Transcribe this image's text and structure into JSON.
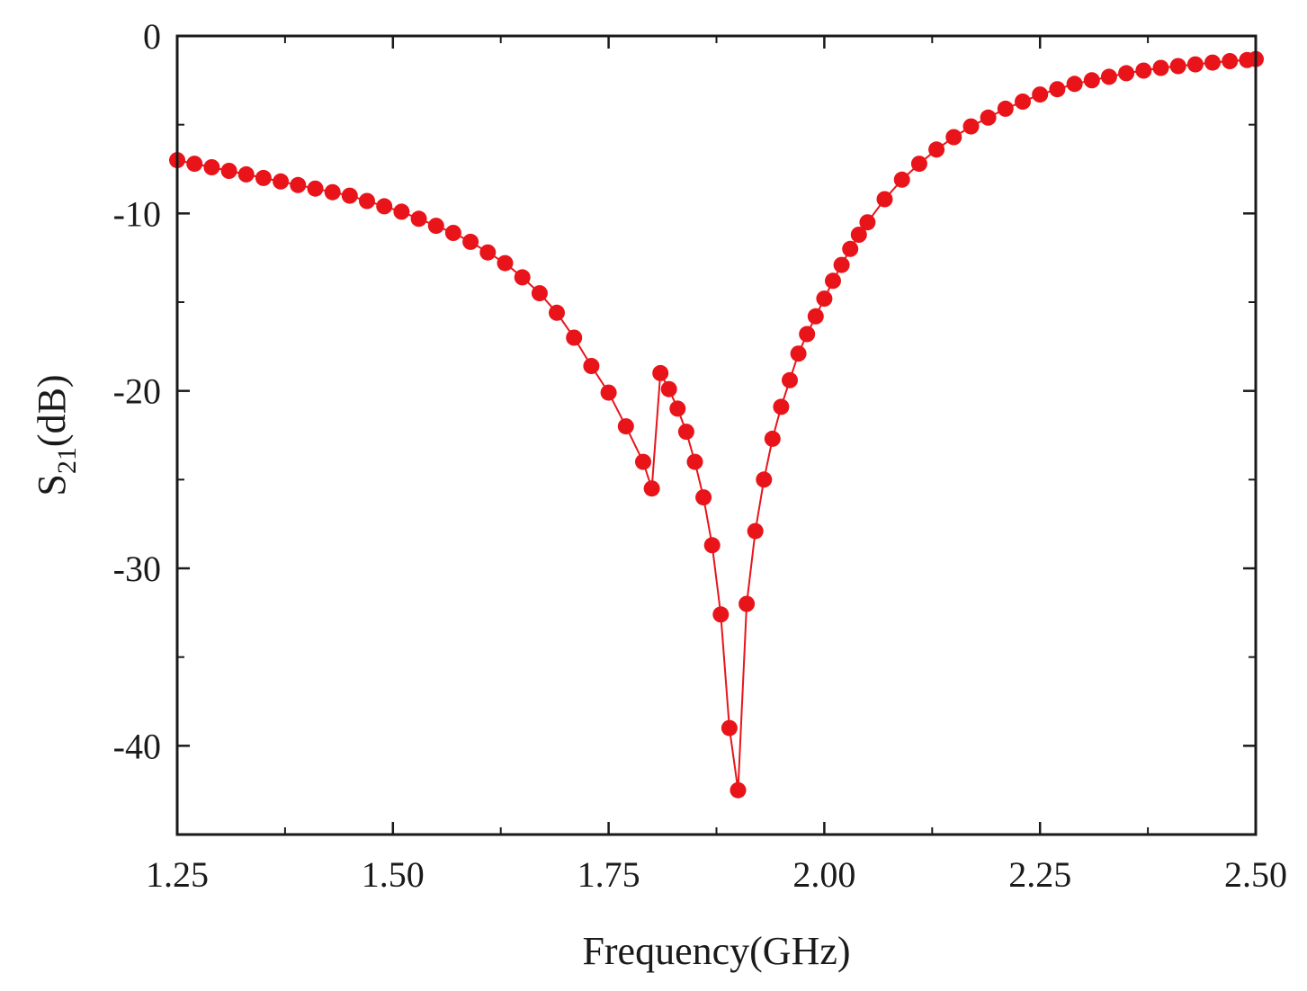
{
  "chart_data": {
    "type": "scatter",
    "xlabel": "Frequency(GHz)",
    "ylabel": {
      "base": "S",
      "sub": "21",
      "rest": "(dB)"
    },
    "xlim": [
      1.25,
      2.5
    ],
    "ylim": [
      -45,
      0
    ],
    "xticks": [
      "1.25",
      "1.50",
      "1.75",
      "2.00",
      "2.25",
      "2.50"
    ],
    "xtick_values": [
      1.25,
      1.5,
      1.75,
      2.0,
      2.25,
      2.5
    ],
    "yticks": [
      "0",
      "-10",
      "-20",
      "-30",
      "-40"
    ],
    "ytick_values": [
      0,
      -10,
      -20,
      -30,
      -40
    ],
    "yminor": [
      -5,
      -15,
      -25,
      -35
    ],
    "grid": false,
    "legend": "none",
    "marker_color": "#e8141a",
    "line_color": "#e8141a",
    "series": [
      {
        "x": [
          1.25,
          1.27,
          1.29,
          1.31,
          1.33,
          1.35,
          1.37,
          1.39,
          1.41,
          1.43,
          1.45,
          1.47,
          1.49,
          1.51,
          1.53,
          1.55,
          1.57,
          1.59,
          1.61,
          1.63,
          1.65,
          1.67,
          1.69,
          1.71,
          1.73,
          1.75,
          1.77,
          1.79,
          1.8,
          1.81,
          1.82,
          1.83,
          1.84,
          1.85,
          1.86,
          1.87,
          1.88,
          1.89,
          1.9,
          1.91,
          1.92,
          1.93,
          1.94,
          1.95,
          1.96,
          1.97,
          1.98,
          1.99,
          2.0,
          2.01,
          2.02,
          2.03,
          2.04,
          2.05,
          2.07,
          2.09,
          2.11,
          2.13,
          2.15,
          2.17,
          2.19,
          2.21,
          2.23,
          2.25,
          2.27,
          2.29,
          2.31,
          2.33,
          2.35,
          2.37,
          2.39,
          2.41,
          2.43,
          2.45,
          2.47,
          2.49,
          2.5
        ],
        "y": [
          -7.0,
          -7.2,
          -7.4,
          -7.6,
          -7.8,
          -8.0,
          -8.2,
          -8.4,
          -8.6,
          -8.8,
          -9.0,
          -9.3,
          -9.6,
          -9.9,
          -10.3,
          -10.7,
          -11.1,
          -11.6,
          -12.2,
          -12.8,
          -13.6,
          -14.5,
          -15.6,
          -17.0,
          -18.6,
          -20.1,
          -22.0,
          -24.0,
          -25.5,
          -19.0,
          -19.9,
          -21.0,
          -22.3,
          -24.0,
          -26.0,
          -28.7,
          -32.6,
          -39.0,
          -42.5,
          -32.0,
          -27.9,
          -25.0,
          -22.7,
          -20.9,
          -19.4,
          -17.9,
          -16.8,
          -15.8,
          -14.8,
          -13.8,
          -12.9,
          -12.0,
          -11.2,
          -10.5,
          -9.2,
          -8.1,
          -7.2,
          -6.4,
          -5.7,
          -5.1,
          -4.6,
          -4.1,
          -3.7,
          -3.3,
          -3.0,
          -2.7,
          -2.5,
          -2.3,
          -2.1,
          -1.95,
          -1.8,
          -1.7,
          -1.6,
          -1.5,
          -1.42,
          -1.36,
          -1.3
        ]
      }
    ]
  }
}
